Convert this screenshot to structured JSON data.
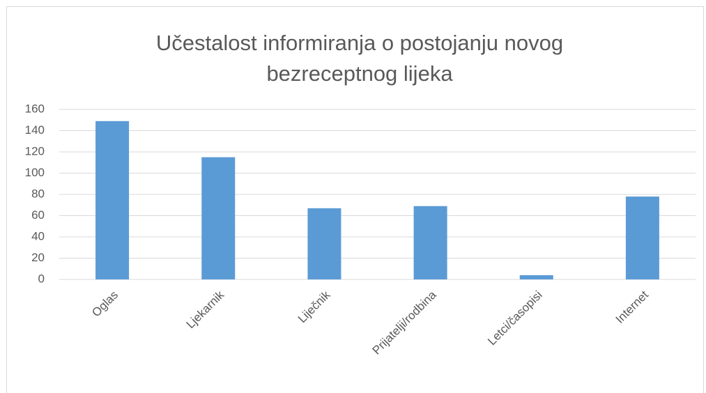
{
  "chart_data": {
    "type": "bar",
    "title": "Učestalost informiranja o postojanju novog bezreceptnog lijeka",
    "categories": [
      "Oglas",
      "Ljekarnik",
      "Liječnik",
      "Prijatelji/rodbina",
      "Letci/časopisi",
      "Internet"
    ],
    "values": [
      149,
      115,
      67,
      69,
      4,
      78
    ],
    "color": "#5b9bd5",
    "ylim": [
      0,
      160
    ],
    "yticks": [
      0,
      20,
      40,
      60,
      80,
      100,
      120,
      140,
      160
    ],
    "grid": true
  }
}
